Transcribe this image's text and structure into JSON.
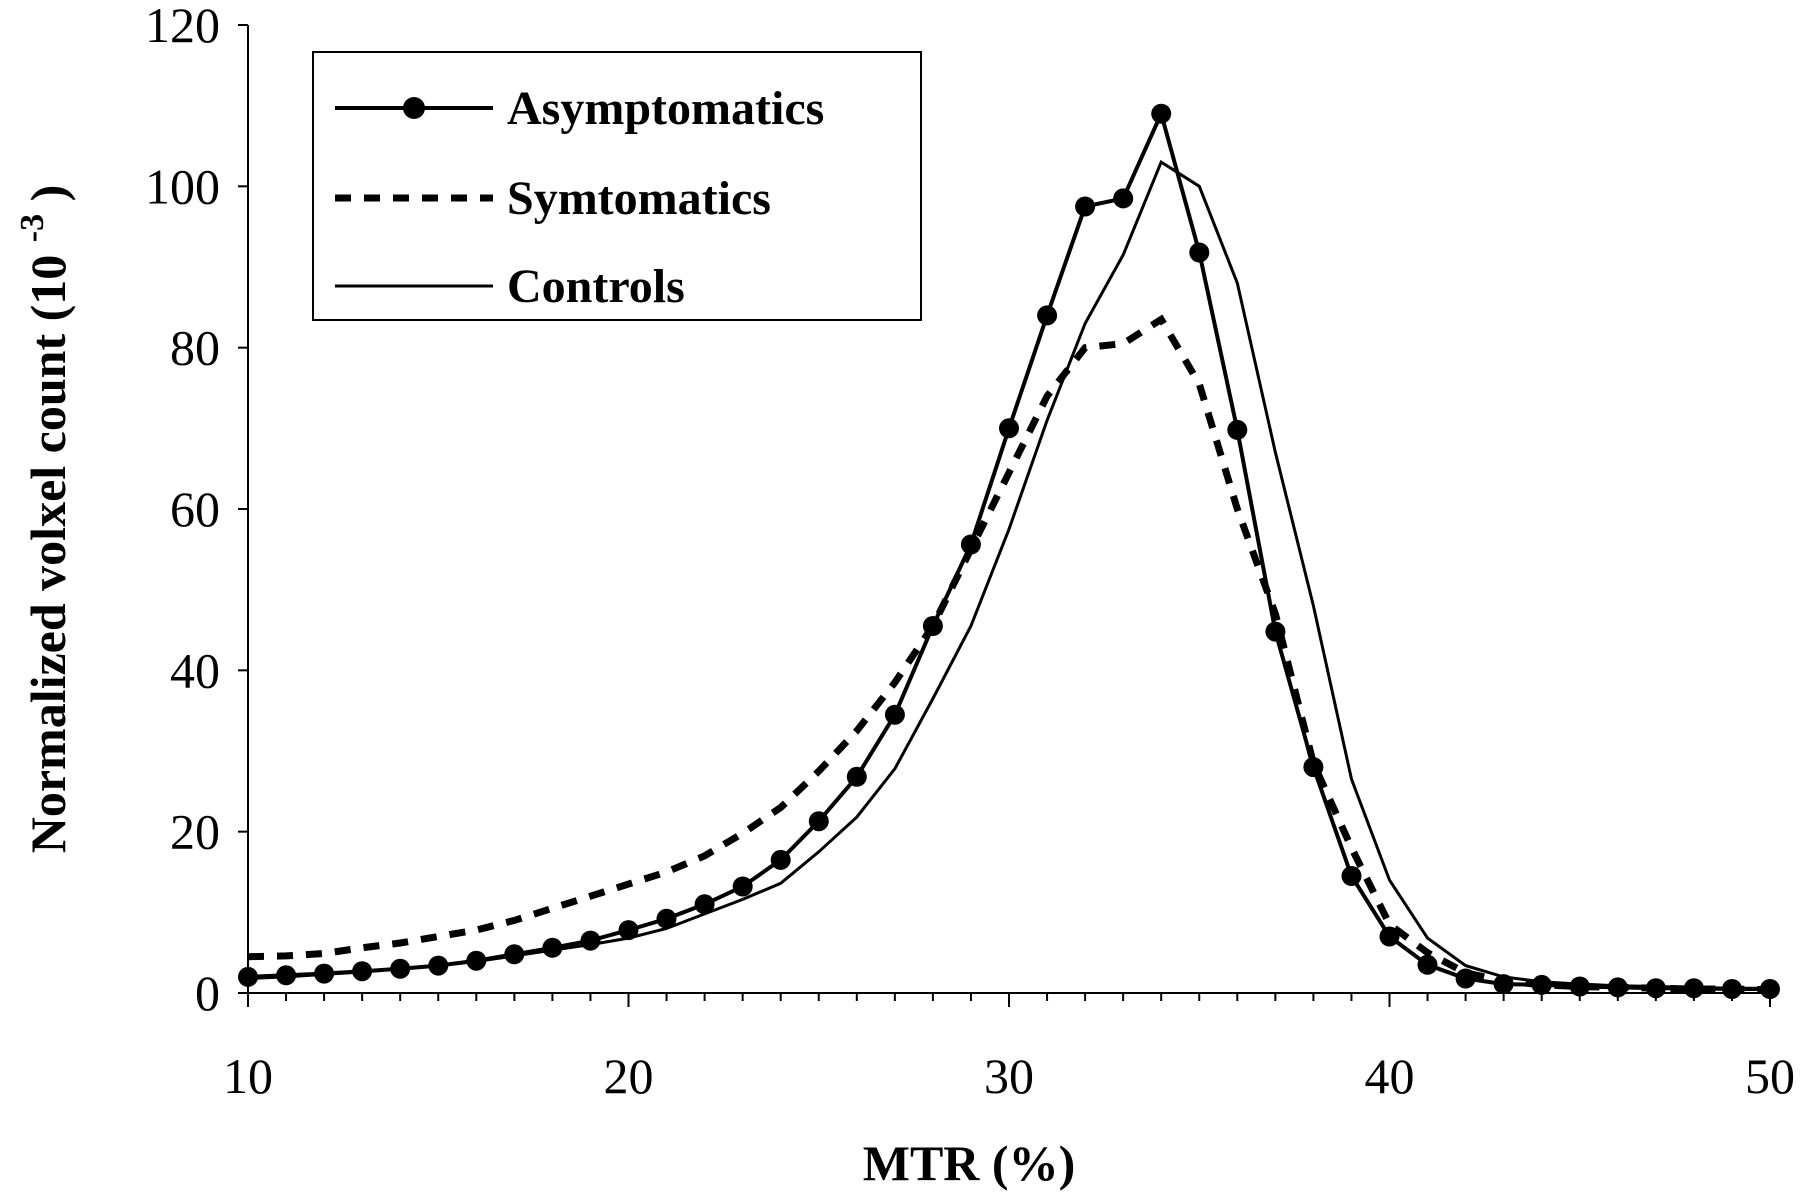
{
  "chart_data": {
    "type": "line",
    "title": "",
    "xlabel": "MTR (%)",
    "ylabel": "Normalized volxel count (10",
    "ylabel_superscript": "-3",
    "ylabel_close": ")",
    "xlim": [
      10,
      50
    ],
    "ylim": [
      0,
      120
    ],
    "xticks": [
      10,
      20,
      30,
      40,
      50
    ],
    "yticks": [
      0,
      20,
      40,
      60,
      80,
      100,
      120
    ],
    "grid": false,
    "legend_position": "top-left",
    "x": [
      10,
      11,
      12,
      13,
      14,
      15,
      16,
      17,
      18,
      19,
      20,
      21,
      22,
      23,
      24,
      25,
      26,
      27,
      28,
      29,
      30,
      31,
      32,
      33,
      34,
      35,
      36,
      37,
      38,
      39,
      40,
      41,
      42,
      43,
      44,
      45,
      46,
      47,
      48,
      49,
      50
    ],
    "series": [
      {
        "name": "Asymptomatics",
        "style": "solid-markers",
        "values": [
          2.0,
          2.2,
          2.4,
          2.7,
          3.0,
          3.4,
          4.0,
          4.8,
          5.6,
          6.5,
          7.8,
          9.2,
          11.0,
          13.2,
          16.5,
          21.3,
          26.8,
          34.5,
          45.5,
          55.6,
          70.0,
          84.0,
          97.5,
          98.5,
          109.0,
          91.8,
          69.8,
          44.8,
          28.0,
          14.5,
          7.0,
          3.5,
          1.8,
          1.1,
          1.0,
          0.8,
          0.7,
          0.6,
          0.6,
          0.5,
          0.5
        ]
      },
      {
        "name": "Symtomatics",
        "style": "dashed",
        "values": [
          4.5,
          4.6,
          4.9,
          5.6,
          6.2,
          7.0,
          7.8,
          9.0,
          10.5,
          12.0,
          13.5,
          15.0,
          17.0,
          19.8,
          23.0,
          27.5,
          32.5,
          38.5,
          45.5,
          55.0,
          64.5,
          74.0,
          80.0,
          80.5,
          83.5,
          75.5,
          60.0,
          47.0,
          28.5,
          18.0,
          8.5,
          5.0,
          2.5,
          1.5,
          1.0,
          0.8,
          0.7,
          0.6,
          0.5,
          0.5,
          0.4
        ]
      },
      {
        "name": "Controls",
        "style": "solid",
        "values": [
          1.8,
          2.0,
          2.3,
          2.6,
          3.0,
          3.4,
          3.9,
          4.6,
          5.3,
          6.0,
          6.8,
          8.0,
          9.8,
          11.6,
          13.6,
          17.5,
          21.8,
          27.8,
          36.5,
          45.5,
          57.5,
          71.0,
          83.0,
          91.5,
          103.0,
          100.0,
          88.0,
          67.0,
          48.0,
          26.5,
          14.0,
          6.8,
          3.4,
          2.0,
          1.4,
          1.1,
          0.9,
          0.8,
          0.7,
          0.6,
          0.6
        ]
      }
    ]
  }
}
